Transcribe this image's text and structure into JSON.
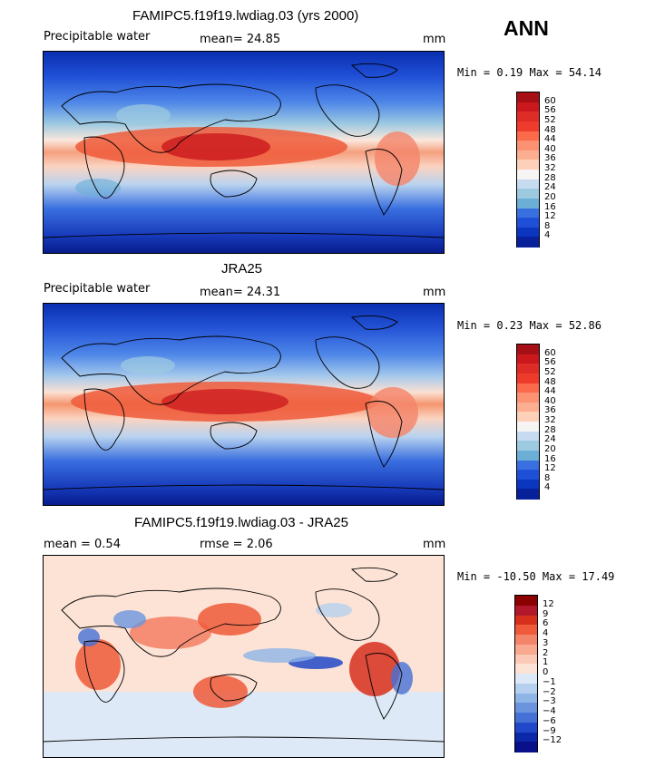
{
  "season": "ANN",
  "panels": [
    {
      "title": "FAMIPC5.f19f19.lwdiag.03 (yrs 2000)",
      "label": "Precipitable water",
      "stat1": "mean=  24.85",
      "units": "mm",
      "minmax": "Min =   0.19 Max =  54.14",
      "colorbar_labels": [
        "60",
        "56",
        "52",
        "48",
        "44",
        "40",
        "36",
        "32",
        "28",
        "24",
        "20",
        "16",
        "12",
        "8",
        "4"
      ],
      "colors": [
        "#a50f15",
        "#cb181d",
        "#de2d26",
        "#ef3b2c",
        "#fb6a4a",
        "#fc9272",
        "#fcae91",
        "#fdd0b9",
        "#f7f4f4",
        "#c6dbef",
        "#9ecae1",
        "#6baed6",
        "#3a6fe0",
        "#1f4fd6",
        "#0a36c0",
        "#08209a"
      ]
    },
    {
      "title": "JRA25",
      "label": "Precipitable water",
      "stat1": "mean=  24.31",
      "units": "mm",
      "minmax": "Min =   0.23 Max =  52.86",
      "colorbar_labels": [
        "60",
        "56",
        "52",
        "48",
        "44",
        "40",
        "36",
        "32",
        "28",
        "24",
        "20",
        "16",
        "12",
        "8",
        "4"
      ],
      "colors": [
        "#a50f15",
        "#cb181d",
        "#de2d26",
        "#ef3b2c",
        "#fb6a4a",
        "#fc9272",
        "#fcae91",
        "#fdd0b9",
        "#f7f4f4",
        "#c6dbef",
        "#9ecae1",
        "#6baed6",
        "#3a6fe0",
        "#1f4fd6",
        "#0a36c0",
        "#08209a"
      ]
    },
    {
      "title": "FAMIPC5.f19f19.lwdiag.03 - JRA25",
      "stat1": "mean =   0.54",
      "stat2": "rmse =   2.06",
      "units": "mm",
      "minmax": "Min = -10.50 Max =  17.49",
      "colorbar_labels": [
        "12",
        "9",
        "6",
        "4",
        "3",
        "2",
        "1",
        "0",
        "−1",
        "−2",
        "−3",
        "−4",
        "−6",
        "−9",
        "−12"
      ],
      "colors": [
        "#8b0000",
        "#b2182b",
        "#d6301d",
        "#ef5a3a",
        "#f4846a",
        "#f8a98f",
        "#fbc9b5",
        "#fde3d6",
        "#dde9f6",
        "#b5d0ee",
        "#8fb4e6",
        "#6a95de",
        "#4570d6",
        "#2148c8",
        "#0a28a8",
        "#08108a"
      ]
    }
  ],
  "chart_data": [
    {
      "type": "heatmap",
      "title": "FAMIPC5.f19f19.lwdiag.03 (yrs 2000)",
      "variable": "Precipitable water",
      "units": "mm",
      "mean": 24.85,
      "min": 0.19,
      "max": 54.14,
      "levels": [
        4,
        8,
        12,
        16,
        20,
        24,
        28,
        32,
        36,
        40,
        44,
        48,
        52,
        56,
        60
      ]
    },
    {
      "type": "heatmap",
      "title": "JRA25",
      "variable": "Precipitable water",
      "units": "mm",
      "mean": 24.31,
      "min": 0.23,
      "max": 52.86,
      "levels": [
        4,
        8,
        12,
        16,
        20,
        24,
        28,
        32,
        36,
        40,
        44,
        48,
        52,
        56,
        60
      ]
    },
    {
      "type": "heatmap",
      "title": "FAMIPC5.f19f19.lwdiag.03 - JRA25",
      "units": "mm",
      "mean": 0.54,
      "rmse": 2.06,
      "min": -10.5,
      "max": 17.49,
      "levels": [
        -12,
        -9,
        -6,
        -4,
        -3,
        -2,
        -1,
        0,
        1,
        2,
        3,
        4,
        6,
        9,
        12
      ]
    }
  ]
}
